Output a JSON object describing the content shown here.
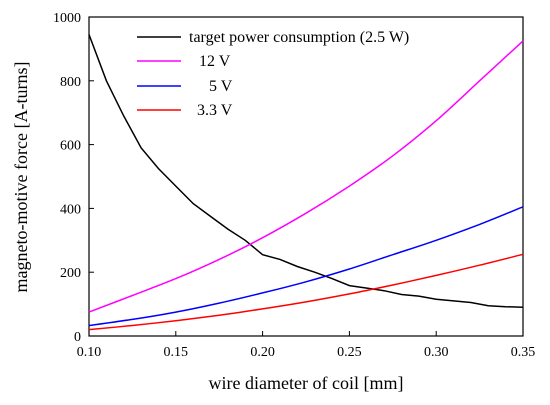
{
  "chart_data": {
    "type": "line",
    "xlabel": "wire diameter of coil [mm]",
    "ylabel": "magneto-motive force [A-turns]",
    "xlim": [
      0.1,
      0.35
    ],
    "ylim": [
      0,
      1000
    ],
    "xticks": [
      0.1,
      0.15,
      0.2,
      0.25,
      0.3,
      0.35
    ],
    "yticks": [
      0,
      200,
      400,
      600,
      800,
      1000
    ],
    "xtick_labels": [
      "0.10",
      "0.15",
      "0.20",
      "0.25",
      "0.30",
      "0.35"
    ],
    "ytick_labels": [
      "0",
      "200",
      "400",
      "600",
      "800",
      "1000"
    ],
    "grid": false,
    "legend_position": "top",
    "series": [
      {
        "name": "target power consumption (2.5 W)",
        "color": "#000000",
        "x": [
          0.1,
          0.11,
          0.12,
          0.13,
          0.14,
          0.15,
          0.16,
          0.17,
          0.18,
          0.19,
          0.2,
          0.21,
          0.22,
          0.23,
          0.24,
          0.25,
          0.26,
          0.27,
          0.28,
          0.29,
          0.3,
          0.31,
          0.32,
          0.33,
          0.34,
          0.35
        ],
        "y": [
          945,
          800,
          690,
          590,
          525,
          470,
          415,
          375,
          335,
          300,
          255,
          240,
          218,
          200,
          180,
          158,
          150,
          142,
          130,
          125,
          115,
          110,
          105,
          95,
          92,
          90
        ]
      },
      {
        "name": "12 V",
        "color": "#ff00ff",
        "x": [
          0.1,
          0.125,
          0.15,
          0.175,
          0.2,
          0.225,
          0.25,
          0.275,
          0.3,
          0.325,
          0.35
        ],
        "y": [
          75,
          127,
          180,
          240,
          308,
          385,
          470,
          565,
          675,
          800,
          925
        ]
      },
      {
        "name": "5 V",
        "color": "#0000ff",
        "x": [
          0.1,
          0.125,
          0.15,
          0.175,
          0.2,
          0.225,
          0.25,
          0.275,
          0.3,
          0.325,
          0.35
        ],
        "y": [
          33,
          52,
          75,
          103,
          135,
          170,
          210,
          255,
          300,
          350,
          405
        ]
      },
      {
        "name": "3.3 V",
        "color": "#ff0000",
        "x": [
          0.1,
          0.125,
          0.15,
          0.175,
          0.2,
          0.225,
          0.25,
          0.275,
          0.3,
          0.325,
          0.35
        ],
        "y": [
          20,
          33,
          48,
          65,
          85,
          107,
          132,
          160,
          190,
          222,
          256
        ]
      }
    ]
  }
}
